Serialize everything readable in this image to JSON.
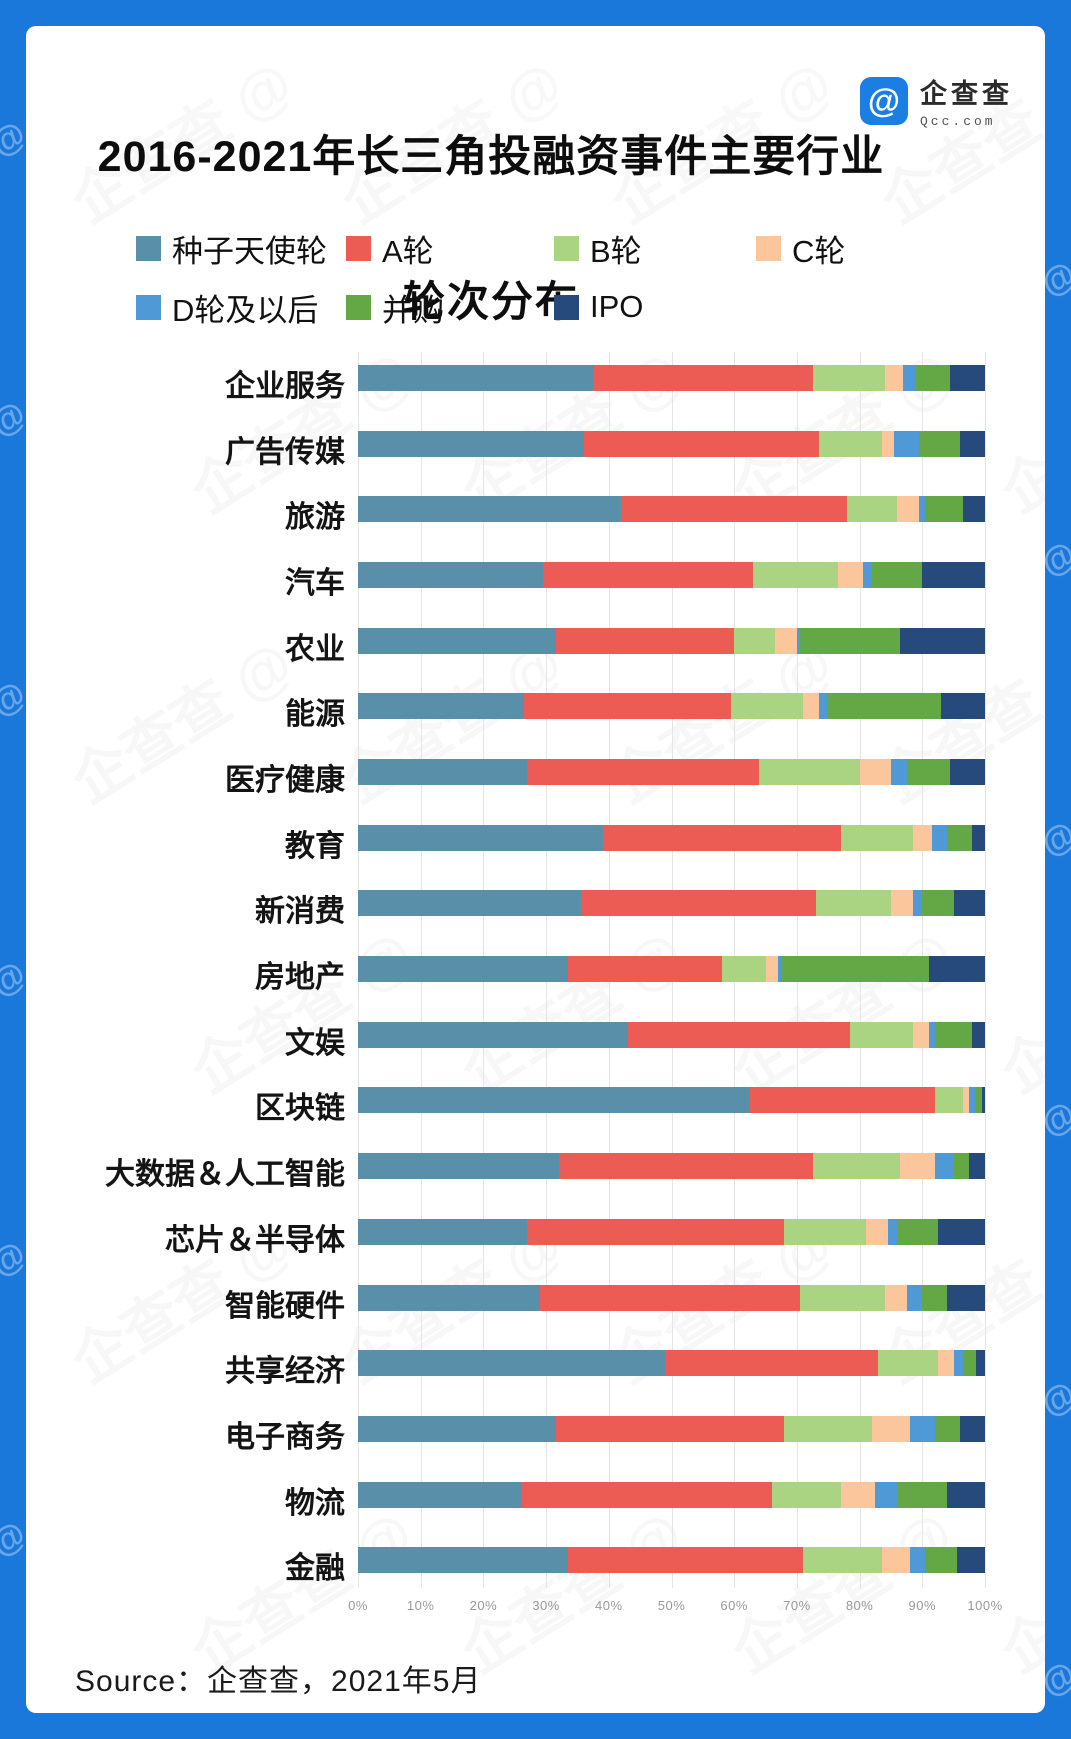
{
  "page": {
    "title_line1": "2016-2021年长三角投融资事件主要行业",
    "title_line2": "轮次分布",
    "source": "Source：企查查，2021年5月"
  },
  "logo": {
    "icon_glyph": "@",
    "name": "企查查",
    "domain": "Qcc.com",
    "brand_color": "#1a7ee2"
  },
  "legend": [
    {
      "label": "种子天使轮",
      "color": "#5a8fa9"
    },
    {
      "label": "A轮",
      "color": "#ec5b54"
    },
    {
      "label": "B轮",
      "color": "#aad481"
    },
    {
      "label": "C轮",
      "color": "#fbc69b"
    },
    {
      "label": "D轮及以后",
      "color": "#4f99d7"
    },
    {
      "label": "并购",
      "color": "#63a845"
    },
    {
      "label": "IPO",
      "color": "#264a7b"
    }
  ],
  "chart_data": {
    "type": "bar",
    "orientation": "horizontal",
    "stacked": true,
    "unit": "percent",
    "grid": "vertical",
    "legend_position": "top",
    "xlim": [
      0,
      100
    ],
    "x_ticks": [
      "0%",
      "10%",
      "20%",
      "30%",
      "40%",
      "50%",
      "60%",
      "70%",
      "80%",
      "90%",
      "100%"
    ],
    "categories": [
      "企业服务",
      "广告传媒",
      "旅游",
      "汽车",
      "农业",
      "能源",
      "医疗健康",
      "教育",
      "新消费",
      "房地产",
      "文娱",
      "区块链",
      "大数据＆人工智能",
      "芯片＆半导体",
      "智能硬件",
      "共享经济",
      "电子商务",
      "物流",
      "金融"
    ],
    "series": [
      {
        "name": "种子天使轮",
        "color": "#5a8fa9",
        "values": [
          37.5,
          36,
          42,
          29.5,
          31.5,
          26.5,
          27,
          39,
          35.5,
          33.5,
          43,
          62.5,
          32,
          27,
          29,
          49,
          31.5,
          26,
          33.5
        ]
      },
      {
        "name": "A轮",
        "color": "#ec5b54",
        "values": [
          35,
          37.5,
          36,
          33.5,
          28.5,
          33,
          37,
          38,
          37.5,
          24.5,
          35.5,
          29.5,
          40.5,
          41,
          41.5,
          34,
          36.5,
          40,
          37.5
        ]
      },
      {
        "name": "B轮",
        "color": "#aad481",
        "values": [
          11.5,
          10,
          8,
          13.5,
          6.5,
          11.5,
          16,
          11.5,
          12,
          7,
          10,
          4.5,
          14,
          13,
          13.5,
          9.5,
          14,
          11,
          12.5
        ]
      },
      {
        "name": "C轮",
        "color": "#fbc69b",
        "values": [
          3,
          2,
          3.5,
          4,
          3.5,
          2.5,
          5,
          3,
          3.5,
          2,
          2.5,
          1,
          5.5,
          3.5,
          3.5,
          2.5,
          6,
          5.5,
          4.5
        ]
      },
      {
        "name": "D轮及以后",
        "color": "#4f99d7",
        "values": [
          2,
          4,
          1,
          1.5,
          0.5,
          1.5,
          2.5,
          2.5,
          1.5,
          0.5,
          1,
          1,
          3,
          1.5,
          2.5,
          1.5,
          4,
          3.5,
          2.5
        ]
      },
      {
        "name": "并购",
        "color": "#63a845",
        "values": [
          5.5,
          6.5,
          6,
          8,
          16,
          18,
          7,
          4,
          5,
          23.5,
          6,
          1,
          2.5,
          6.5,
          4,
          2,
          4,
          8,
          5
        ]
      },
      {
        "name": "IPO",
        "color": "#264a7b",
        "values": [
          5.5,
          4,
          3.5,
          10,
          13.5,
          7,
          5.5,
          2,
          5,
          9,
          2,
          0.5,
          2.5,
          7.5,
          6,
          1.5,
          4,
          6,
          4.5
        ]
      }
    ]
  },
  "watermark_text": "企查查 @"
}
